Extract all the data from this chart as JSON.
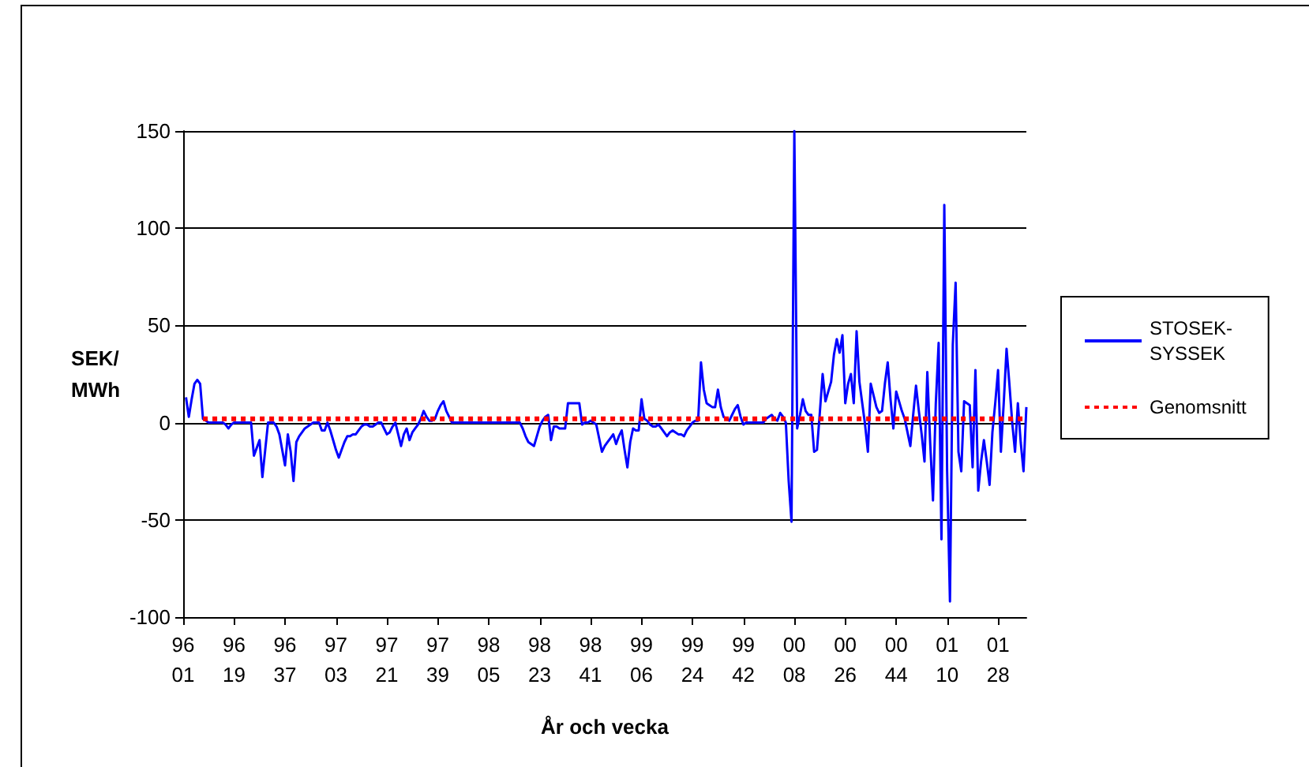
{
  "chart_data": {
    "type": "line",
    "xlabel": "År och vecka",
    "ylabel": "SEK/\nMWh",
    "ylim": [
      -100,
      150
    ],
    "yticks": [
      -100,
      -50,
      0,
      50,
      100,
      150
    ],
    "categories": [
      "96\n01",
      null,
      null,
      null,
      null,
      null,
      null,
      null,
      null,
      null,
      null,
      null,
      null,
      null,
      null,
      null,
      null,
      null,
      "96\n19",
      null,
      null,
      null,
      null,
      null,
      null,
      null,
      null,
      null,
      null,
      null,
      null,
      null,
      null,
      null,
      null,
      null,
      "96\n37",
      null,
      null,
      null,
      null,
      null,
      null,
      null,
      null,
      null,
      null,
      null,
      null,
      null,
      null,
      null,
      null,
      null,
      "97\n03",
      null,
      null,
      null,
      null,
      null,
      null,
      null,
      null,
      null,
      null,
      null,
      null,
      null,
      null,
      null,
      null,
      null,
      "97\n21",
      null,
      null,
      null,
      null,
      null,
      null,
      null,
      null,
      null,
      null,
      null,
      null,
      null,
      null,
      null,
      null,
      null,
      "97\n39",
      null,
      null,
      null,
      null,
      null,
      null,
      null,
      null,
      null,
      null,
      null,
      null,
      null,
      null,
      null,
      null,
      null,
      "98\n05",
      null,
      null,
      null,
      null,
      null,
      null,
      null,
      null,
      null,
      null,
      null,
      null,
      null,
      null,
      null,
      null,
      null,
      "98\n23",
      null,
      null,
      null,
      null,
      null,
      null,
      null,
      null,
      null,
      null,
      null,
      null,
      null,
      null,
      null,
      null,
      null,
      "98\n41",
      null,
      null,
      null,
      null,
      null,
      null,
      null,
      null,
      null,
      null,
      null,
      null,
      null,
      null,
      null,
      null,
      null,
      "99\n06",
      null,
      null,
      null,
      null,
      null,
      null,
      null,
      null,
      null,
      null,
      null,
      null,
      null,
      null,
      null,
      null,
      null,
      "99\n24",
      null,
      null,
      null,
      null,
      null,
      null,
      null,
      null,
      null,
      null,
      null,
      null,
      null,
      null,
      null,
      null,
      null,
      "99\n42",
      null,
      null,
      null,
      null,
      null,
      null,
      null,
      null,
      null,
      null,
      null,
      null,
      null,
      null,
      null,
      null,
      null,
      "00\n08",
      null,
      null,
      null,
      null,
      null,
      null,
      null,
      null,
      null,
      null,
      null,
      null,
      null,
      null,
      null,
      null,
      null,
      "00\n26",
      null,
      null,
      null,
      null,
      null,
      null,
      null,
      null,
      null,
      null,
      null,
      null,
      null,
      null,
      null,
      null,
      null,
      "00\n44",
      null,
      null,
      null,
      null,
      null,
      null,
      null,
      null,
      null,
      null,
      null,
      null,
      null,
      null,
      null,
      null,
      null,
      "01\n10",
      null,
      null,
      null,
      null,
      null,
      null,
      null,
      null,
      null,
      null,
      null,
      null,
      null,
      null,
      null,
      null,
      null,
      "01\n28",
      null,
      null,
      null,
      null,
      null,
      null,
      null,
      null,
      null,
      null
    ],
    "grid": "y",
    "legend": "right",
    "marker": "none",
    "series": [
      {
        "name": "STOSEK-\nSYSSEK",
        "color": "#0000ff",
        "line_style": "solid",
        "values": [
          null,
          13,
          3,
          12,
          20,
          22,
          20,
          2,
          1,
          0,
          0,
          0,
          0,
          0,
          0,
          -1,
          -3,
          -1,
          0,
          0,
          0,
          0,
          0,
          0,
          0,
          -17,
          -13,
          -9,
          -28,
          -14,
          0,
          0,
          0,
          -2,
          -6,
          -14,
          -22,
          -6,
          -15,
          -30,
          -10,
          -7,
          -5,
          -3,
          -2,
          -1,
          0,
          0,
          0,
          -4,
          -4,
          0,
          -4,
          -9,
          -14,
          -18,
          -14,
          -10,
          -7,
          -7,
          -6,
          -6,
          -4,
          -2,
          -1,
          -1,
          -2,
          -2,
          -1,
          0,
          0,
          -3,
          -6,
          -5,
          -2,
          0,
          -6,
          -12,
          -6,
          -3,
          -9,
          -5,
          -3,
          -1,
          2,
          6,
          3,
          1,
          1,
          2,
          6,
          9,
          11,
          6,
          3,
          0,
          0,
          0,
          0,
          0,
          0,
          0,
          0,
          0,
          0,
          0,
          0,
          0,
          0,
          0,
          0,
          0,
          0,
          0,
          0,
          0,
          0,
          0,
          0,
          0,
          -3,
          -7,
          -10,
          -11,
          -12,
          -7,
          -2,
          1,
          3,
          4,
          -9,
          -2,
          -2,
          -3,
          -3,
          -3,
          10,
          10,
          10,
          10,
          10,
          -1,
          0,
          0,
          1,
          0,
          -1,
          -8,
          -15,
          -12,
          -10,
          -8,
          -6,
          -11,
          -7,
          -4,
          -14,
          -23,
          -10,
          -3,
          -4,
          -4,
          12,
          2,
          1,
          -1,
          -2,
          -2,
          -1,
          -3,
          -5,
          -7,
          -5,
          -4,
          -5,
          -6,
          -6,
          -7,
          -4,
          -2,
          0,
          1,
          1,
          31,
          17,
          10,
          9,
          8,
          8,
          17,
          8,
          3,
          2,
          1,
          4,
          7,
          9,
          3,
          -1,
          0,
          0,
          0,
          0,
          0,
          0,
          0,
          2,
          3,
          4,
          2,
          1,
          5,
          3,
          0,
          -30,
          -51,
          150,
          -3,
          4,
          12,
          6,
          4,
          4,
          -15,
          -14,
          5,
          25,
          11,
          16,
          21,
          35,
          43,
          36,
          45,
          10,
          20,
          25,
          10,
          47,
          21,
          10,
          -1,
          -15,
          20,
          14,
          8,
          5,
          6,
          20,
          31,
          12,
          -3,
          16,
          11,
          6,
          2,
          -5,
          -12,
          4,
          19,
          6,
          -6,
          -20,
          26,
          -10,
          -40,
          10,
          41,
          -60,
          112,
          -25,
          -92,
          40,
          72,
          -15,
          -25,
          11,
          10,
          9,
          -23,
          27,
          -35,
          -20,
          -9,
          -20,
          -32,
          -5,
          10,
          27,
          -15,
          10,
          38,
          20,
          0,
          -15,
          10,
          -10,
          -25,
          8
        ]
      },
      {
        "name": "Genomsnitt",
        "color": "#ff0000",
        "line_style": "dotted",
        "values": [
          null,
          null,
          null,
          null,
          null,
          null,
          null,
          2,
          2,
          2,
          2,
          2,
          2,
          2,
          2,
          2,
          2,
          2,
          2,
          2,
          2,
          2,
          2,
          2,
          2,
          2,
          2,
          2,
          2,
          2,
          2,
          2,
          2,
          2,
          2,
          2,
          2,
          2,
          2,
          2,
          2,
          2,
          2,
          2,
          2,
          2,
          2,
          2,
          2,
          2,
          2,
          2,
          2,
          2,
          2,
          2,
          2,
          2,
          2,
          2,
          2,
          2,
          2,
          2,
          2,
          2,
          2,
          2,
          2,
          2,
          2,
          2,
          2,
          2,
          2,
          2,
          2,
          2,
          2,
          2,
          2,
          2,
          2,
          2,
          2,
          2,
          2,
          2,
          2,
          2,
          2,
          2,
          2,
          2,
          2,
          2,
          2,
          2,
          2,
          2,
          2,
          2,
          2,
          2,
          2,
          2,
          2,
          2,
          2,
          2,
          2,
          2,
          2,
          2,
          2,
          2,
          2,
          2,
          2,
          2,
          2,
          2,
          2,
          2,
          2,
          2,
          2,
          2,
          2,
          2,
          2,
          2,
          2,
          2,
          2,
          2,
          2,
          2,
          2,
          2,
          2,
          2,
          2,
          2,
          2,
          2,
          2,
          2,
          2,
          2,
          2,
          2,
          2,
          2,
          2,
          2,
          2,
          2,
          2,
          2,
          2,
          2,
          2,
          2,
          2,
          2,
          2,
          2,
          2,
          2,
          2,
          2,
          2,
          2,
          2,
          2,
          2,
          2,
          2,
          2,
          2,
          2,
          2,
          2,
          2,
          2,
          2,
          2,
          2,
          2,
          2,
          2,
          2,
          2,
          2,
          2,
          2,
          2,
          2,
          2,
          2,
          2,
          2,
          2,
          2,
          2,
          2,
          2,
          2,
          2,
          2,
          2,
          2,
          2,
          2,
          2,
          2,
          2,
          2,
          2,
          2,
          2,
          2,
          2,
          2,
          2,
          2,
          2,
          2,
          2,
          2,
          2,
          2,
          2,
          2,
          2,
          2,
          2,
          2,
          2,
          2,
          2,
          2,
          2,
          2,
          2,
          2,
          2,
          2,
          2,
          2,
          2,
          2,
          2,
          2,
          2,
          2,
          2,
          2,
          2,
          2,
          2,
          2,
          2,
          2,
          2,
          2,
          2,
          2,
          2,
          2,
          2,
          2,
          2,
          2,
          2,
          2,
          2,
          2,
          2,
          2,
          2,
          2,
          2,
          2,
          2,
          2,
          2,
          2,
          2,
          2,
          2,
          2,
          2,
          2,
          2,
          2,
          2,
          2
        ]
      }
    ]
  }
}
